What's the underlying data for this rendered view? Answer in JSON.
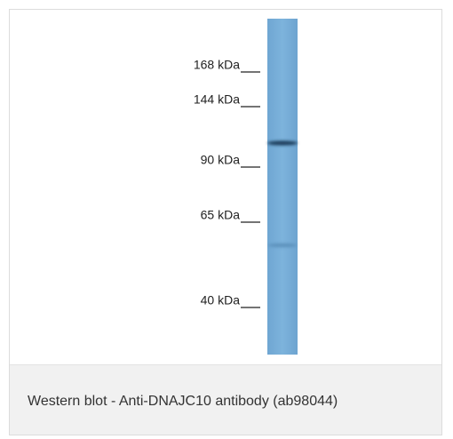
{
  "markers": [
    {
      "label": "168 kDa"
    },
    {
      "label": "144 kDa"
    },
    {
      "label": "90 kDa"
    },
    {
      "label": "65 kDa"
    },
    {
      "label": "40 kDa"
    }
  ],
  "caption": "Western blot - Anti-DNAJC10 antibody (ab98044)"
}
